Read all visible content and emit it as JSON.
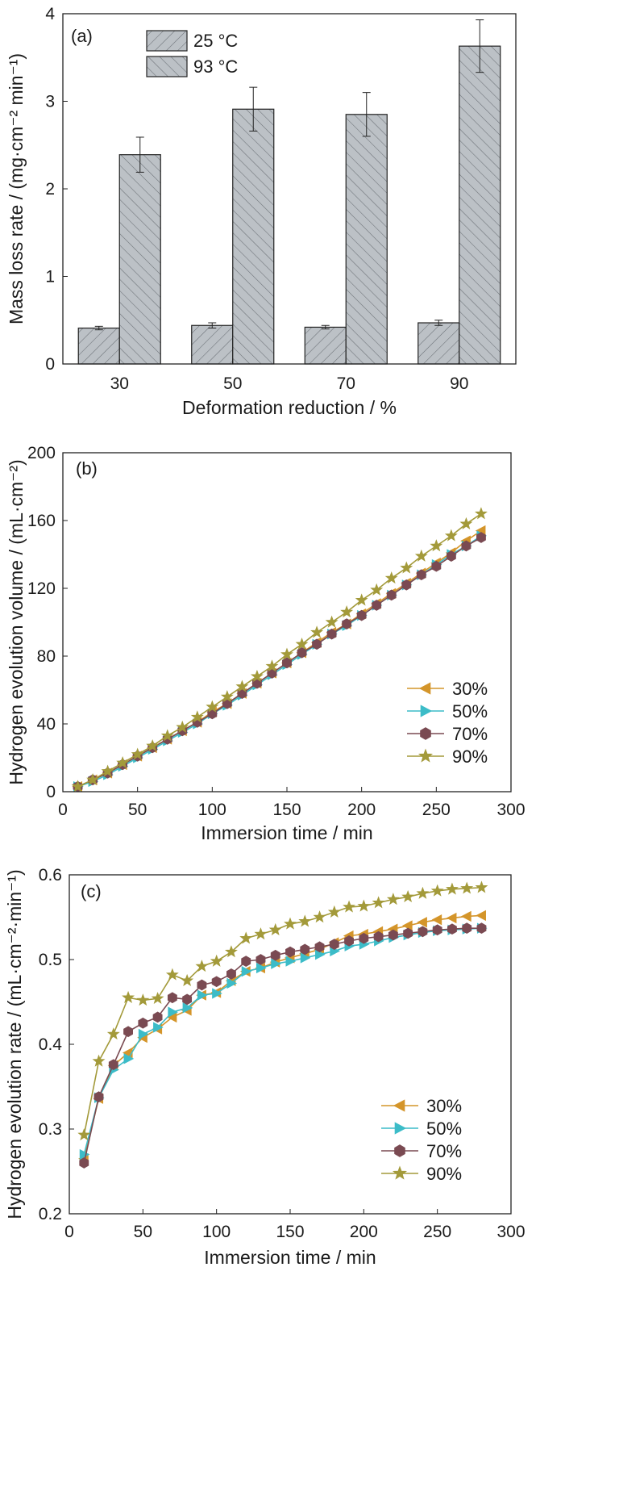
{
  "chart_data": [
    {
      "panel": "(a)",
      "type": "bar",
      "xlabel": "Deformation reduction / %",
      "ylabel": "Mass loss rate / (mg·cm⁻² min⁻¹)",
      "categories": [
        "30",
        "50",
        "70",
        "90"
      ],
      "ylim": [
        0,
        4
      ],
      "yticks": [
        0,
        1,
        2,
        3,
        4
      ],
      "legend_position": "top-left",
      "series": [
        {
          "name": "25 °C",
          "values": [
            0.41,
            0.44,
            0.42,
            0.47
          ],
          "errors": [
            0.02,
            0.03,
            0.02,
            0.03
          ]
        },
        {
          "name": "93 °C",
          "values": [
            2.39,
            2.91,
            2.85,
            3.63
          ],
          "errors": [
            0.2,
            0.25,
            0.25,
            0.3
          ]
        }
      ],
      "colors": {
        "bar": "#bcc1c6",
        "hatch": "#6b7076",
        "edge": "#222222"
      }
    },
    {
      "panel": "(b)",
      "type": "line",
      "xlabel": "Immersion time / min",
      "ylabel": "Hydrogen evolution volume / (mL·cm⁻²)",
      "xlim": [
        0,
        300
      ],
      "ylim": [
        0,
        200
      ],
      "xticks": [
        0,
        50,
        100,
        150,
        200,
        250,
        300
      ],
      "yticks": [
        0,
        40,
        80,
        120,
        160,
        200
      ],
      "legend_position": "lower-right",
      "x": [
        10,
        20,
        30,
        40,
        50,
        60,
        70,
        80,
        90,
        100,
        110,
        120,
        130,
        140,
        150,
        160,
        170,
        180,
        190,
        200,
        210,
        220,
        230,
        240,
        250,
        260,
        270,
        280
      ],
      "series": [
        {
          "name": "30%",
          "marker": "triangle-left",
          "color": "#d4952a",
          "values": [
            3,
            7,
            11,
            16,
            21,
            26,
            31,
            36,
            41,
            47,
            52,
            58,
            64,
            70,
            76,
            82,
            88,
            94,
            99,
            105,
            111,
            117,
            123,
            129,
            135,
            141,
            148,
            154
          ]
        },
        {
          "name": "50%",
          "marker": "triangle-right",
          "color": "#3cbcc8",
          "values": [
            3,
            6,
            10,
            15,
            20,
            25,
            30,
            35,
            40,
            46,
            51,
            57,
            63,
            69,
            75,
            81,
            87,
            93,
            98,
            104,
            110,
            116,
            122,
            128,
            134,
            140,
            145,
            151
          ]
        },
        {
          "name": "70%",
          "marker": "hexagon",
          "color": "#7a4a52",
          "values": [
            3,
            7,
            11,
            16,
            21,
            26,
            31,
            36,
            41,
            46,
            52,
            58,
            64,
            70,
            76,
            82,
            87,
            93,
            99,
            104,
            110,
            116,
            122,
            128,
            133,
            139,
            145,
            150
          ]
        },
        {
          "name": "90%",
          "marker": "star",
          "color": "#a39a3a",
          "values": [
            3,
            7,
            12,
            17,
            22,
            27,
            33,
            38,
            44,
            50,
            56,
            62,
            68,
            74,
            81,
            87,
            94,
            100,
            106,
            113,
            119,
            126,
            132,
            139,
            145,
            151,
            158,
            164
          ]
        }
      ]
    },
    {
      "panel": "(c)",
      "type": "line",
      "xlabel": "Immersion time / min",
      "ylabel": "Hydrogen evolution rate / (mL·cm⁻²·min⁻¹)",
      "xlim": [
        0,
        300
      ],
      "ylim": [
        0.2,
        0.6
      ],
      "xticks": [
        0,
        50,
        100,
        150,
        200,
        250,
        300
      ],
      "yticks": [
        0.2,
        0.3,
        0.4,
        0.5,
        0.6
      ],
      "legend_position": "lower-right",
      "x": [
        10,
        20,
        30,
        40,
        50,
        60,
        70,
        80,
        90,
        100,
        110,
        120,
        130,
        140,
        150,
        160,
        170,
        180,
        190,
        200,
        210,
        220,
        230,
        240,
        250,
        260,
        270,
        280
      ],
      "series": [
        {
          "name": "30%",
          "marker": "triangle-left",
          "color": "#d4952a",
          "values": [
            0.265,
            0.336,
            0.375,
            0.39,
            0.408,
            0.418,
            0.432,
            0.44,
            0.458,
            0.461,
            0.475,
            0.486,
            0.49,
            0.497,
            0.502,
            0.507,
            0.512,
            0.52,
            0.528,
            0.53,
            0.533,
            0.536,
            0.54,
            0.544,
            0.547,
            0.549,
            0.551,
            0.552
          ]
        },
        {
          "name": "50%",
          "marker": "triangle-right",
          "color": "#3cbcc8",
          "values": [
            0.27,
            0.337,
            0.37,
            0.383,
            0.412,
            0.42,
            0.438,
            0.443,
            0.458,
            0.46,
            0.472,
            0.486,
            0.49,
            0.495,
            0.498,
            0.502,
            0.506,
            0.51,
            0.516,
            0.518,
            0.522,
            0.526,
            0.529,
            0.532,
            0.534,
            0.535,
            0.536,
            0.537
          ]
        },
        {
          "name": "70%",
          "marker": "hexagon",
          "color": "#7a4a52",
          "values": [
            0.26,
            0.338,
            0.376,
            0.415,
            0.425,
            0.432,
            0.455,
            0.453,
            0.47,
            0.474,
            0.483,
            0.498,
            0.5,
            0.505,
            0.509,
            0.512,
            0.515,
            0.518,
            0.522,
            0.525,
            0.527,
            0.529,
            0.531,
            0.533,
            0.535,
            0.536,
            0.537,
            0.537
          ]
        },
        {
          "name": "90%",
          "marker": "star",
          "color": "#a39a3a",
          "values": [
            0.293,
            0.38,
            0.412,
            0.455,
            0.452,
            0.454,
            0.482,
            0.475,
            0.492,
            0.498,
            0.509,
            0.525,
            0.53,
            0.535,
            0.542,
            0.545,
            0.55,
            0.556,
            0.562,
            0.563,
            0.567,
            0.571,
            0.574,
            0.578,
            0.581,
            0.583,
            0.584,
            0.585
          ]
        }
      ]
    }
  ]
}
